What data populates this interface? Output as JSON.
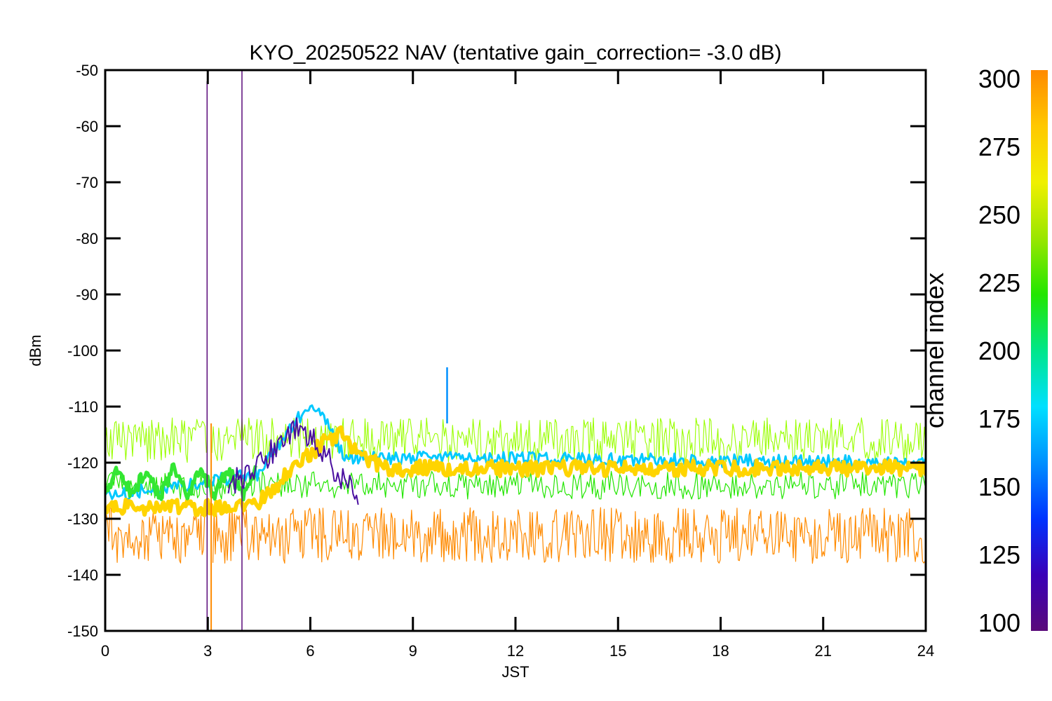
{
  "chart_data": {
    "type": "line",
    "title": "KYO_20250522 NAV (tentative gain_correction= -3.0 dB)",
    "xlabel": "JST",
    "ylabel": "dBm",
    "xlim": [
      0,
      24
    ],
    "ylim": [
      -150,
      -50
    ],
    "x_ticks": [
      0,
      3,
      6,
      9,
      12,
      15,
      18,
      21,
      24
    ],
    "y_ticks": [
      -50,
      -60,
      -70,
      -80,
      -90,
      -100,
      -110,
      -120,
      -130,
      -140,
      -150
    ],
    "grid": false,
    "colorbar": {
      "label": "channel index",
      "range": [
        100,
        300
      ],
      "ticks": [
        300,
        275,
        250,
        225,
        200,
        175,
        150,
        125,
        100
      ],
      "colors": [
        "#5a0a7a",
        "#3a00b8",
        "#0033ff",
        "#0090ff",
        "#00e0ff",
        "#00e68a",
        "#22e600",
        "#9ae600",
        "#f0f000",
        "#ffc800",
        "#ff8a00"
      ]
    },
    "series": [
      {
        "color": "#ff8a00",
        "x": [
          0,
          3,
          24
        ],
        "y": [
          -133,
          -133,
          -133
        ]
      },
      {
        "color": "#99ff00",
        "x": [
          0,
          3,
          24
        ],
        "y": [
          -116,
          -116,
          -116
        ]
      },
      {
        "color": "#22e600",
        "x": [
          0,
          3,
          24
        ],
        "y": [
          -124,
          -124,
          -124
        ]
      },
      {
        "color": "#00c8ff",
        "x": [
          0,
          4.5,
          5.5,
          6.0,
          6.5,
          7.0,
          24
        ],
        "y": [
          -126,
          -122,
          -113,
          -110,
          -113,
          -119,
          -120
        ]
      },
      {
        "color": "#ffd400",
        "x": [
          0,
          3.2,
          4.5,
          5.5,
          6.5,
          6.9,
          7.5,
          8.2,
          24
        ],
        "y": [
          -128,
          -128,
          -127,
          -121,
          -116,
          -115,
          -119,
          -121,
          -121
        ]
      },
      {
        "color": "#33e633",
        "x": [
          0,
          0.4,
          0.8,
          1.2,
          1.6,
          2.0,
          2.4,
          2.8,
          3.2,
          3.6,
          4.0,
          4.4
        ],
        "y": [
          -126,
          -121,
          -126,
          -121,
          -126,
          -121,
          -126,
          -121,
          -126,
          -121,
          -126,
          -121
        ]
      },
      {
        "color": "#4a0fa0",
        "x": [
          3.6,
          4.2,
          5.0,
          5.6,
          6.2,
          6.8,
          7.4
        ],
        "y": [
          -124,
          -122,
          -117,
          -114,
          -117,
          -122,
          -126
        ]
      },
      {
        "color": "#0090ff",
        "x": [
          10.0,
          10.0
        ],
        "y": [
          -113,
          -103
        ]
      },
      {
        "color": "#5a0a7a",
        "x": [
          2.98,
          2.98
        ],
        "y": [
          -150,
          -52
        ]
      },
      {
        "color": "#5a0a7a",
        "x": [
          4.0,
          4.0
        ],
        "y": [
          -150,
          -50
        ]
      },
      {
        "color": "#ff8a00",
        "x": [
          3.1,
          3.1
        ],
        "y": [
          -150,
          -113
        ]
      }
    ]
  }
}
